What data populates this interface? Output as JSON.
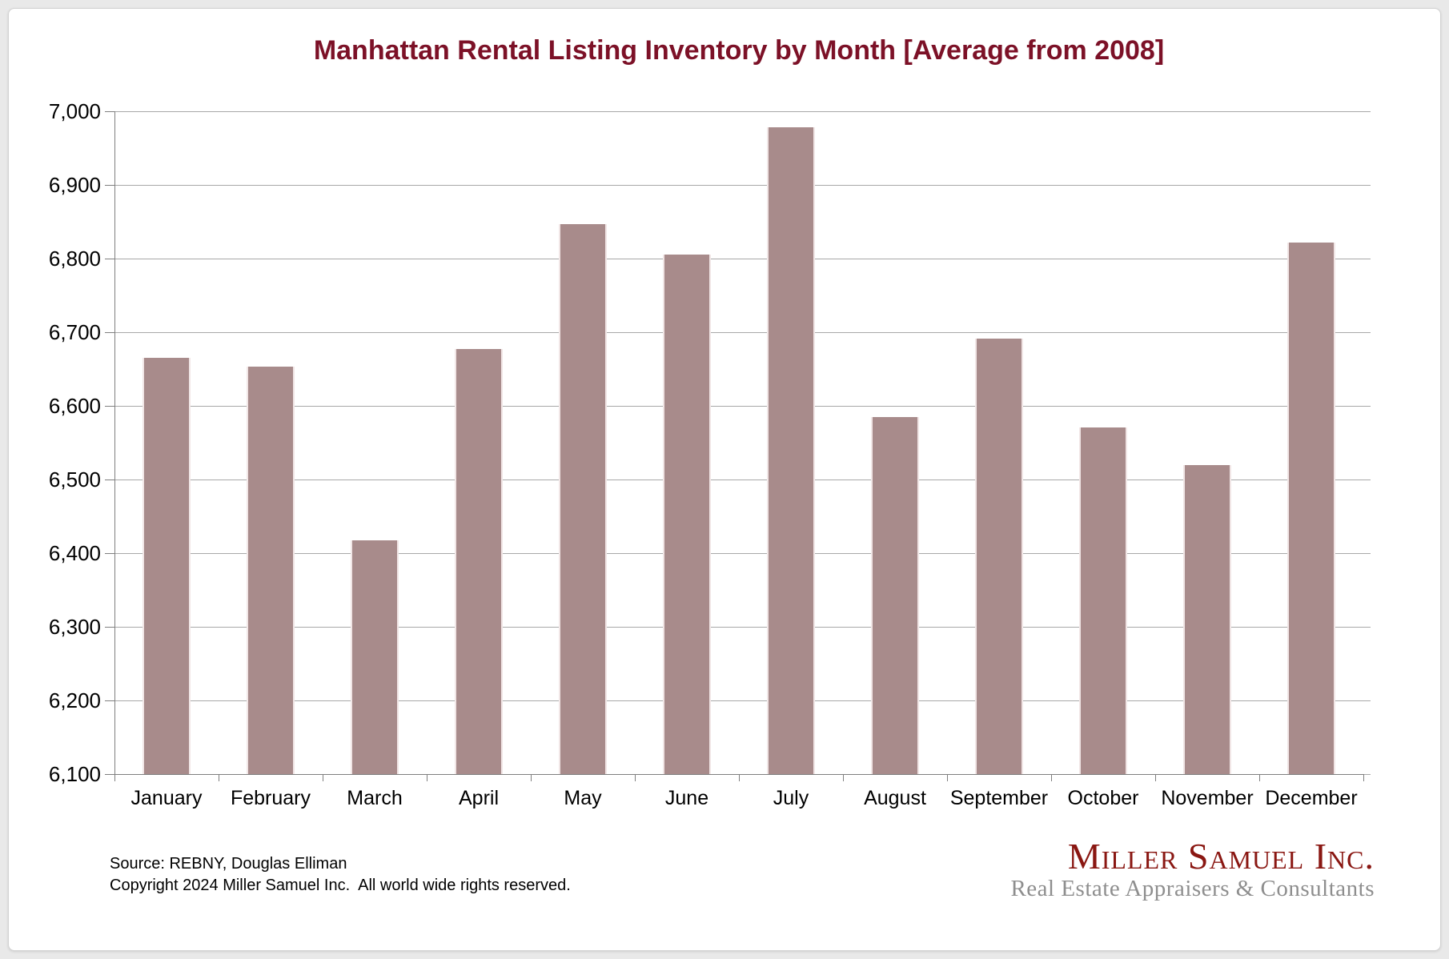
{
  "chart_data": {
    "type": "bar",
    "title": "Manhattan Rental Listing Inventory by Month [Average from 2008]",
    "categories": [
      "January",
      "February",
      "March",
      "April",
      "May",
      "June",
      "July",
      "August",
      "September",
      "October",
      "November",
      "December"
    ],
    "values": [
      6665,
      6653,
      6417,
      6677,
      6847,
      6805,
      6978,
      6585,
      6691,
      6571,
      6520,
      6822
    ],
    "xlabel": "",
    "ylabel": "",
    "ylim": [
      6100,
      7000
    ],
    "ytick_step": 100,
    "ytick_labels": [
      "7,000",
      "6,900",
      "6,800",
      "6,700",
      "6,600",
      "6,500",
      "6,400",
      "6,300",
      "6,200",
      "6,100"
    ],
    "grid": true,
    "legend_position": "none",
    "colors": {
      "bar": "#a88b8b",
      "bar_edge": "#f1e6e6",
      "title": "#7c1127",
      "gridline": "#a8a8a8",
      "axis": "#7f7f7f"
    }
  },
  "footer": {
    "source_line": "Source: REBNY, Douglas Elliman",
    "copyright_line": "Copyright 2024 Miller Samuel Inc.  All world wide rights reserved."
  },
  "logo": {
    "name_line": "Miller Samuel Inc.",
    "tagline": "Real Estate Appraisers & Consultants",
    "name_color": "#8a1712",
    "tagline_color": "#8e8e8e"
  }
}
